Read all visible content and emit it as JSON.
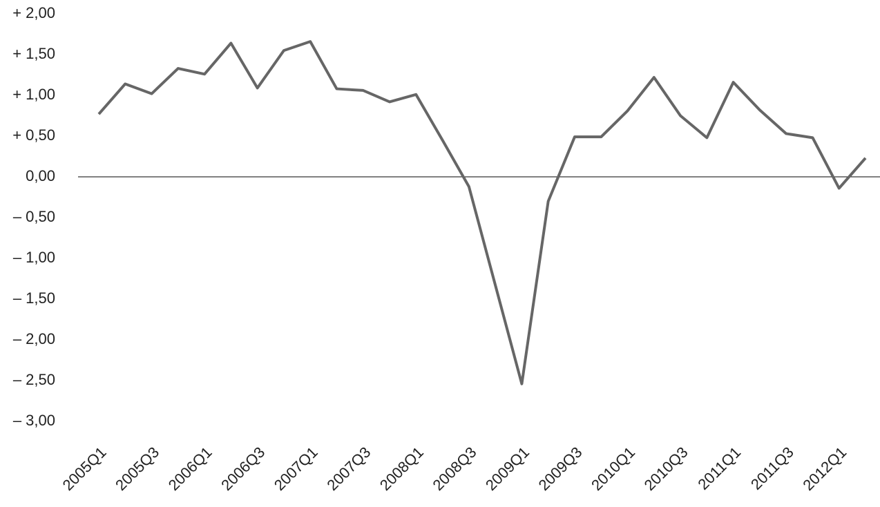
{
  "chart_data": {
    "type": "line",
    "categories": [
      "2005Q1",
      null,
      "2005Q3",
      null,
      "2006Q1",
      null,
      "2006Q3",
      null,
      "2007Q1",
      null,
      "2007Q3",
      null,
      "2008Q1",
      null,
      "2008Q3",
      null,
      "2009Q1",
      null,
      "2009Q3",
      null,
      "2010Q1",
      null,
      "2010Q3",
      null,
      "2011Q1",
      null,
      "2011Q3",
      null,
      "2012Q1",
      null
    ],
    "series": [
      {
        "color": "#666666",
        "values": [
          0.77,
          1.14,
          1.02,
          1.33,
          1.26,
          1.64,
          1.09,
          1.55,
          1.66,
          1.08,
          1.06,
          0.92,
          1.01,
          0.45,
          -0.12,
          -1.33,
          -2.54,
          -0.3,
          0.49,
          0.49,
          0.81,
          1.22,
          0.75,
          0.48,
          1.16,
          0.82,
          0.53,
          0.48,
          -0.14,
          0.23
        ]
      }
    ],
    "ylim": [
      -3,
      2
    ],
    "yticks": [
      {
        "value": 2,
        "label": "+ 2,00"
      },
      {
        "value": 1.5,
        "label": "+ 1,50"
      },
      {
        "value": 1,
        "label": "+ 1,00"
      },
      {
        "value": 0.5,
        "label": "+ 0,50"
      },
      {
        "value": 0,
        "label": "0,00"
      },
      {
        "value": -0.5,
        "label": "– 0,50"
      },
      {
        "value": -1,
        "label": "– 1,00"
      },
      {
        "value": -1.5,
        "label": "– 1,50"
      },
      {
        "value": -2,
        "label": "– 2,00"
      },
      {
        "value": -2.5,
        "label": "– 2,50"
      },
      {
        "value": -3,
        "label": "– 3,00"
      }
    ]
  }
}
